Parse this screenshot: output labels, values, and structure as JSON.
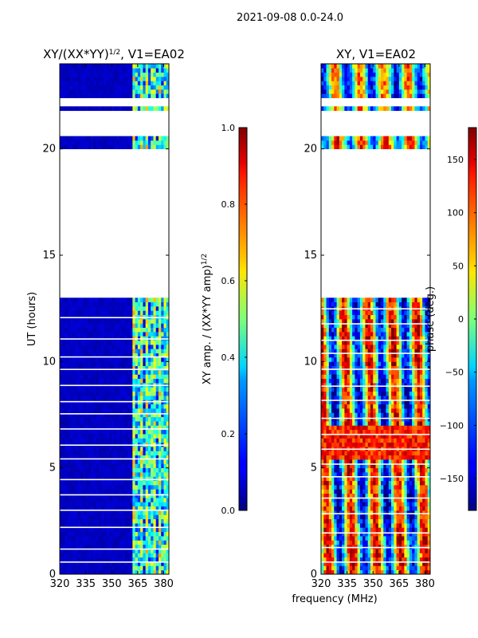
{
  "figure_title": "2021-09-08 0.0-24.0",
  "chart_data": [
    {
      "type": "heatmap",
      "title": "XY/(XX*YY)",
      "title_exponent": "1/2",
      "title_suffix": ", V1=EA02",
      "xlabel": "",
      "ylabel": "UT (hours)",
      "x_ticks": [
        320,
        335,
        350,
        365,
        380
      ],
      "y_ticks": [
        0,
        5,
        10,
        15,
        20
      ],
      "xlim": [
        320,
        383
      ],
      "ylim": [
        0,
        24
      ],
      "colorbar": {
        "label": "XY amp. / (XX*YY amp)",
        "label_exponent": "1/2",
        "range": [
          0.0,
          1.0
        ],
        "ticks": [
          0.0,
          0.2,
          0.4,
          0.6,
          0.8,
          1.0
        ],
        "tick_labels": [
          "0.0",
          "0.2",
          "0.4",
          "0.6",
          "0.8",
          "1.0"
        ]
      },
      "colormap": "jet",
      "data_gaps_hours": [
        [
          13.0,
          20.0
        ],
        [
          20.6,
          21.8
        ],
        [
          22.0,
          22.3
        ]
      ],
      "cell_value_estimates": {
        "freq_band_320_362_MHz": 0.05,
        "freq_band_362_383_MHz": 0.4
      }
    },
    {
      "type": "heatmap",
      "title": "XY, V1=EA02",
      "xlabel": "frequency (MHz)",
      "ylabel": "",
      "x_ticks": [
        320,
        335,
        350,
        365,
        380
      ],
      "y_ticks": [
        0,
        5,
        10,
        15,
        20
      ],
      "xlim": [
        320,
        383
      ],
      "ylim": [
        0,
        24
      ],
      "colorbar": {
        "label": "phase (deg.)",
        "range": [
          -180,
          180
        ],
        "ticks": [
          -150,
          -100,
          -50,
          0,
          50,
          100,
          150
        ],
        "tick_labels": [
          "−150",
          "−100",
          "−50",
          "0",
          "50",
          "100",
          "150"
        ]
      },
      "colormap": "jet",
      "data_gaps_hours": [
        [
          13.0,
          20.0
        ],
        [
          20.6,
          21.8
        ],
        [
          22.0,
          22.3
        ]
      ]
    }
  ]
}
